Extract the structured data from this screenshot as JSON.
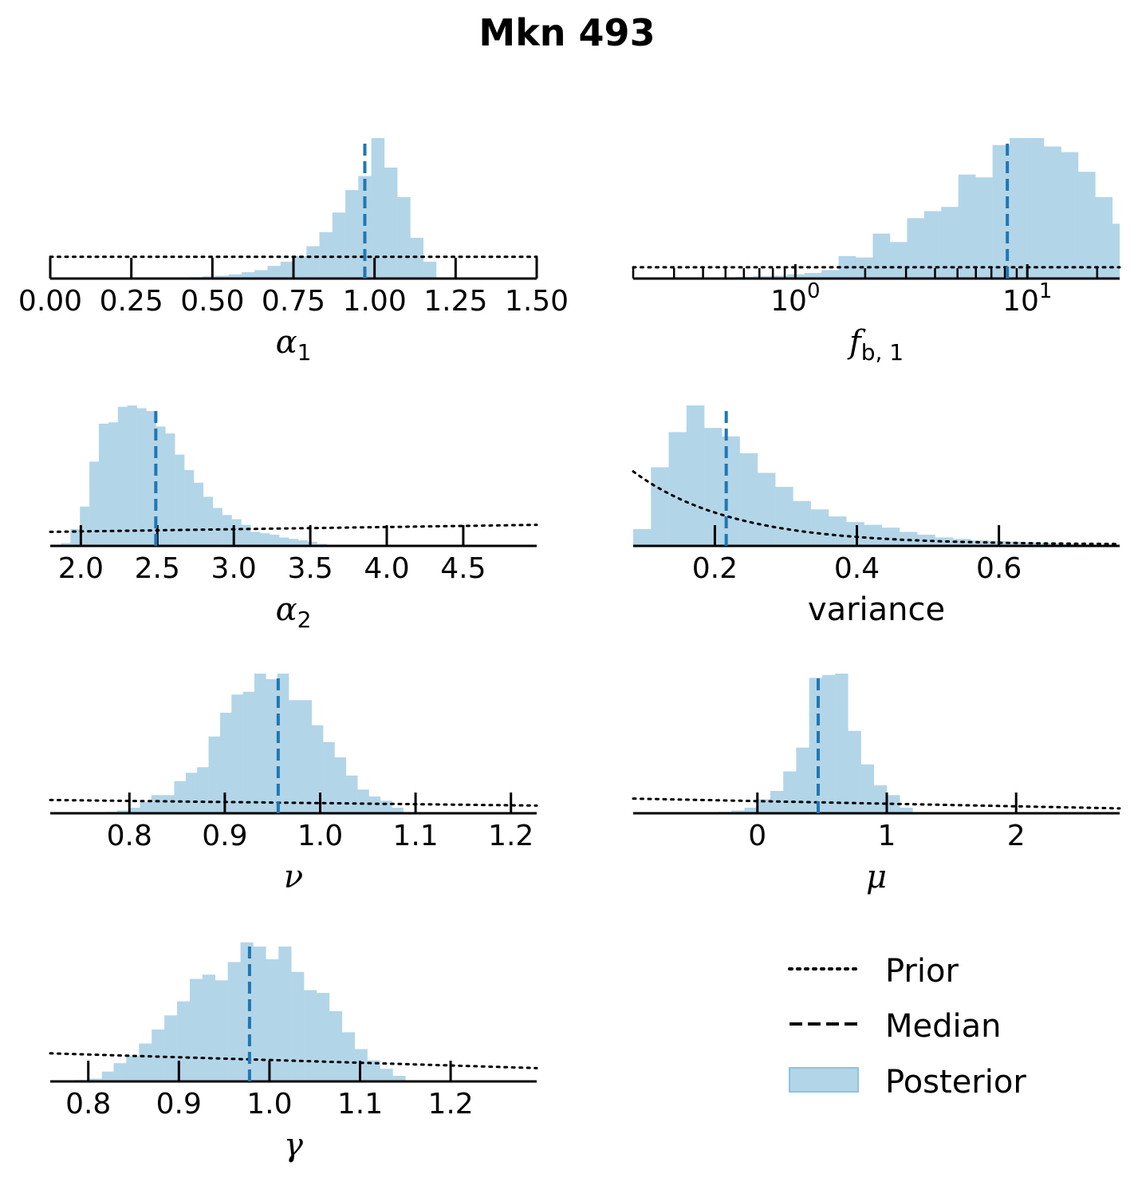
{
  "title": "Mkn 493",
  "colors": {
    "posterior_fill": "#b3d5e8",
    "median": "#1f77b4",
    "prior": "#000000",
    "axis": "#000000"
  },
  "legend": {
    "placement": "lower-right",
    "items": [
      {
        "label": "Prior",
        "style": "dotted"
      },
      {
        "label": "Median",
        "style": "dashed"
      },
      {
        "label": "Posterior",
        "style": "patch"
      }
    ]
  },
  "chart_data": [
    {
      "type": "bar",
      "id": "alpha1",
      "xlabel": {
        "main": "α",
        "sub": "1"
      },
      "scale": "linear",
      "xlim": [
        0.0,
        1.5
      ],
      "ticks": [
        0.0,
        0.25,
        0.5,
        0.75,
        1.0,
        1.25,
        1.5
      ],
      "tick_labels": [
        "0.00",
        "0.25",
        "0.50",
        "0.75",
        "1.00",
        "1.25",
        "1.50"
      ],
      "hist_edges": [
        0.35,
        0.39,
        0.43,
        0.47,
        0.51,
        0.55,
        0.59,
        0.63,
        0.67,
        0.71,
        0.75,
        0.79,
        0.83,
        0.87,
        0.91,
        0.95,
        0.99,
        1.03,
        1.07,
        1.11,
        1.15,
        1.19
      ],
      "hist_counts": [
        0.005,
        0.008,
        0.01,
        0.015,
        0.02,
        0.03,
        0.045,
        0.06,
        0.09,
        0.12,
        0.16,
        0.23,
        0.33,
        0.47,
        0.63,
        0.73,
        1.0,
        0.79,
        0.58,
        0.29,
        0.12
      ],
      "median": 0.97,
      "prior": {
        "kind": "uniform",
        "level": 0.155
      }
    },
    {
      "type": "bar",
      "id": "fb1",
      "xlabel": {
        "main": "f",
        "sub": "b, 1"
      },
      "scale": "log",
      "xlim": [
        0.2,
        25
      ],
      "ticks": [
        1,
        10
      ],
      "tick_labels": [
        {
          "base": "10",
          "exp": "0"
        },
        {
          "base": "10",
          "exp": "1"
        }
      ],
      "minor_ticks": [
        0.2,
        0.3,
        0.4,
        0.5,
        0.6,
        0.7,
        0.8,
        0.9,
        2,
        3,
        4,
        5,
        6,
        7,
        8,
        9,
        20
      ],
      "hist_edges": [
        0.2,
        0.237,
        0.281,
        0.333,
        0.395,
        0.468,
        0.554,
        0.657,
        0.779,
        0.923,
        1.094,
        1.296,
        1.536,
        1.82,
        2.157,
        2.556,
        3.03,
        3.59,
        4.255,
        5.043,
        5.976,
        7.082,
        8.393,
        9.946,
        11.787,
        13.969,
        16.554,
        19.618,
        23.249,
        27.552
      ],
      "hist_counts": [
        0.002,
        0.003,
        0.004,
        0.005,
        0.007,
        0.009,
        0.012,
        0.016,
        0.02,
        0.03,
        0.04,
        0.06,
        0.16,
        0.15,
        0.32,
        0.26,
        0.43,
        0.48,
        0.51,
        0.74,
        0.72,
        0.95,
        1.0,
        1.0,
        0.94,
        0.9,
        0.76,
        0.58,
        0.39
      ],
      "median": 8.2,
      "prior": {
        "kind": "uniform",
        "level": 0.08
      }
    },
    {
      "type": "bar",
      "id": "alpha2",
      "xlabel": {
        "main": "α",
        "sub": "2"
      },
      "scale": "linear",
      "xlim": [
        1.8,
        4.98
      ],
      "ticks": [
        2.0,
        2.5,
        3.0,
        3.5,
        4.0,
        4.5
      ],
      "tick_labels": [
        "2.0",
        "2.5",
        "3.0",
        "3.5",
        "4.0",
        "4.5"
      ],
      "hist_edges": [
        1.87,
        1.932,
        1.994,
        2.056,
        2.118,
        2.18,
        2.242,
        2.304,
        2.366,
        2.428,
        2.49,
        2.552,
        2.614,
        2.676,
        2.738,
        2.8,
        2.862,
        2.924,
        2.986,
        3.048,
        3.11,
        3.172,
        3.234,
        3.296,
        3.358,
        3.42,
        3.482,
        3.544,
        3.606
      ],
      "hist_counts": [
        0.02,
        0.12,
        0.28,
        0.6,
        0.87,
        0.88,
        0.99,
        1.0,
        0.98,
        0.96,
        0.85,
        0.8,
        0.65,
        0.54,
        0.45,
        0.35,
        0.27,
        0.22,
        0.19,
        0.15,
        0.1,
        0.09,
        0.08,
        0.06,
        0.05,
        0.04,
        0.03,
        0.015
      ],
      "median": 2.49,
      "prior": {
        "kind": "linear",
        "start": 0.1,
        "end": 0.15
      }
    },
    {
      "type": "bar",
      "id": "variance",
      "xlabel": {
        "main": "variance",
        "sub": ""
      },
      "scale": "linear",
      "xlim": [
        0.085,
        0.77
      ],
      "ticks": [
        0.2,
        0.4,
        0.6
      ],
      "tick_labels": [
        "0.2",
        "0.4",
        "0.6"
      ],
      "hist_edges": [
        0.085,
        0.11,
        0.135,
        0.16,
        0.185,
        0.21,
        0.235,
        0.26,
        0.285,
        0.31,
        0.335,
        0.36,
        0.385,
        0.41,
        0.435,
        0.46,
        0.485,
        0.51,
        0.535,
        0.56,
        0.585,
        0.61,
        0.635,
        0.66,
        0.685,
        0.71,
        0.735,
        0.76
      ],
      "hist_counts": [
        0.12,
        0.56,
        0.81,
        1.0,
        0.84,
        0.78,
        0.66,
        0.52,
        0.42,
        0.32,
        0.26,
        0.21,
        0.17,
        0.15,
        0.13,
        0.1,
        0.08,
        0.06,
        0.05,
        0.04,
        0.035,
        0.03,
        0.025,
        0.02,
        0.015,
        0.01,
        0.005
      ],
      "median": 0.216,
      "prior": {
        "kind": "decay",
        "start": 0.53,
        "tail": 0.01,
        "rate": 7.2
      }
    },
    {
      "type": "bar",
      "id": "nu",
      "xlabel": {
        "main": "ν",
        "sub": ""
      },
      "scale": "linear",
      "xlim": [
        0.717,
        1.227
      ],
      "ticks": [
        0.8,
        0.9,
        1.0,
        1.1,
        1.2
      ],
      "tick_labels": [
        "0.8",
        "0.9",
        "1.0",
        "1.1",
        "1.2"
      ],
      "hist_edges": [
        0.775,
        0.787,
        0.799,
        0.811,
        0.823,
        0.835,
        0.847,
        0.859,
        0.871,
        0.883,
        0.895,
        0.907,
        0.919,
        0.931,
        0.943,
        0.955,
        0.967,
        0.979,
        0.991,
        1.003,
        1.015,
        1.027,
        1.039,
        1.051,
        1.063,
        1.075,
        1.087
      ],
      "hist_counts": [
        0.01,
        0.02,
        0.04,
        0.08,
        0.13,
        0.13,
        0.23,
        0.29,
        0.33,
        0.55,
        0.72,
        0.85,
        0.87,
        1.0,
        0.96,
        1.0,
        0.81,
        0.81,
        0.63,
        0.51,
        0.4,
        0.27,
        0.17,
        0.12,
        0.09,
        0.04
      ],
      "median": 0.956,
      "prior": {
        "kind": "linear",
        "start": 0.095,
        "end": 0.055
      }
    },
    {
      "type": "bar",
      "id": "mu",
      "xlabel": {
        "main": "μ",
        "sub": ""
      },
      "scale": "linear",
      "xlim": [
        -0.96,
        2.8
      ],
      "ticks": [
        0,
        1,
        2
      ],
      "tick_labels": [
        "0",
        "1",
        "2"
      ],
      "hist_edges": [
        -0.3,
        -0.2,
        -0.1,
        0.0,
        0.1,
        0.2,
        0.3,
        0.4,
        0.5,
        0.6,
        0.7,
        0.8,
        0.9,
        1.0,
        1.1,
        1.2
      ],
      "hist_counts": [
        0.01,
        0.02,
        0.04,
        0.1,
        0.16,
        0.3,
        0.47,
        0.97,
        0.99,
        1.0,
        0.59,
        0.35,
        0.2,
        0.13,
        0.04
      ],
      "median": 0.47,
      "prior": {
        "kind": "linear",
        "start": 0.105,
        "end": 0.035
      }
    },
    {
      "type": "bar",
      "id": "gamma",
      "xlabel": {
        "main": "γ",
        "sub": ""
      },
      "scale": "linear",
      "xlim": [
        0.758,
        1.295
      ],
      "ticks": [
        0.8,
        0.9,
        1.0,
        1.1,
        1.2
      ],
      "tick_labels": [
        "0.8",
        "0.9",
        "1.0",
        "1.1",
        "1.2"
      ],
      "hist_edges": [
        0.785,
        0.8,
        0.815,
        0.828,
        0.842,
        0.856,
        0.87,
        0.884,
        0.898,
        0.912,
        0.926,
        0.94,
        0.954,
        0.968,
        0.982,
        0.996,
        1.01,
        1.024,
        1.038,
        1.052,
        1.066,
        1.08,
        1.094,
        1.108,
        1.122,
        1.136,
        1.15
      ],
      "hist_counts": [
        0.01,
        0.02,
        0.07,
        0.13,
        0.18,
        0.27,
        0.37,
        0.47,
        0.57,
        0.73,
        0.76,
        0.72,
        0.85,
        0.99,
        0.96,
        0.87,
        0.96,
        0.78,
        0.65,
        0.63,
        0.5,
        0.35,
        0.23,
        0.15,
        0.09,
        0.04
      ],
      "median": 0.978,
      "prior": {
        "kind": "linear",
        "start": 0.2,
        "end": 0.095
      }
    }
  ]
}
